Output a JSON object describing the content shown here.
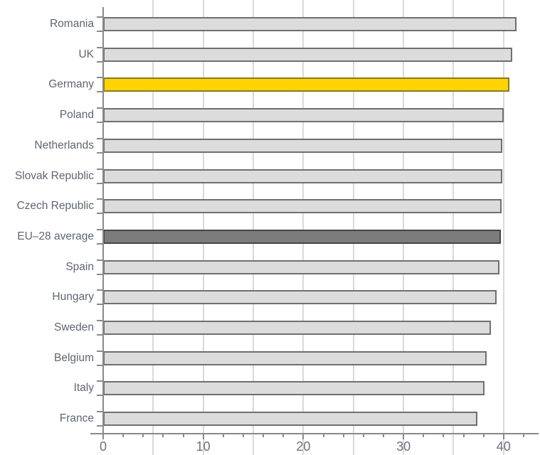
{
  "chart_data": {
    "type": "bar",
    "orientation": "horizontal",
    "title": "",
    "xlabel": "",
    "ylabel": "",
    "categories": [
      "Romania",
      "UK",
      "Germany",
      "Poland",
      "Netherlands",
      "Slovak Republic",
      "Czech Republic",
      "EU–28 average",
      "Spain",
      "Hungary",
      "Sweden",
      "Belgium",
      "Italy",
      "France"
    ],
    "values": [
      41.3,
      40.9,
      40.6,
      40.0,
      39.9,
      39.9,
      39.8,
      39.7,
      39.6,
      39.3,
      38.7,
      38.3,
      38.1,
      37.4
    ],
    "xlim": [
      0,
      43.5
    ],
    "xticks": [
      0,
      10,
      20,
      30,
      40
    ],
    "xtick_labels": [
      "0",
      "10",
      "20",
      "30",
      "40"
    ],
    "minor_tick_step": 2,
    "gridline_step": 5,
    "grid": true,
    "legend": false,
    "highlighted_category": "Germany",
    "average_category": "EU–28 average"
  },
  "styles": {
    "bar_fill": "#dcdcdc",
    "bar_border": "#6f6f6f",
    "highlight_fill": "#ffd400",
    "highlight_border": "#8a7a1e",
    "average_fill": "#7c7c7c",
    "average_border": "#454545",
    "grid_color": "#d9d9d9",
    "axis_color": "#8a8a8a",
    "category_label_color": "#5e6670",
    "tick_label_color": "#6b7380"
  }
}
